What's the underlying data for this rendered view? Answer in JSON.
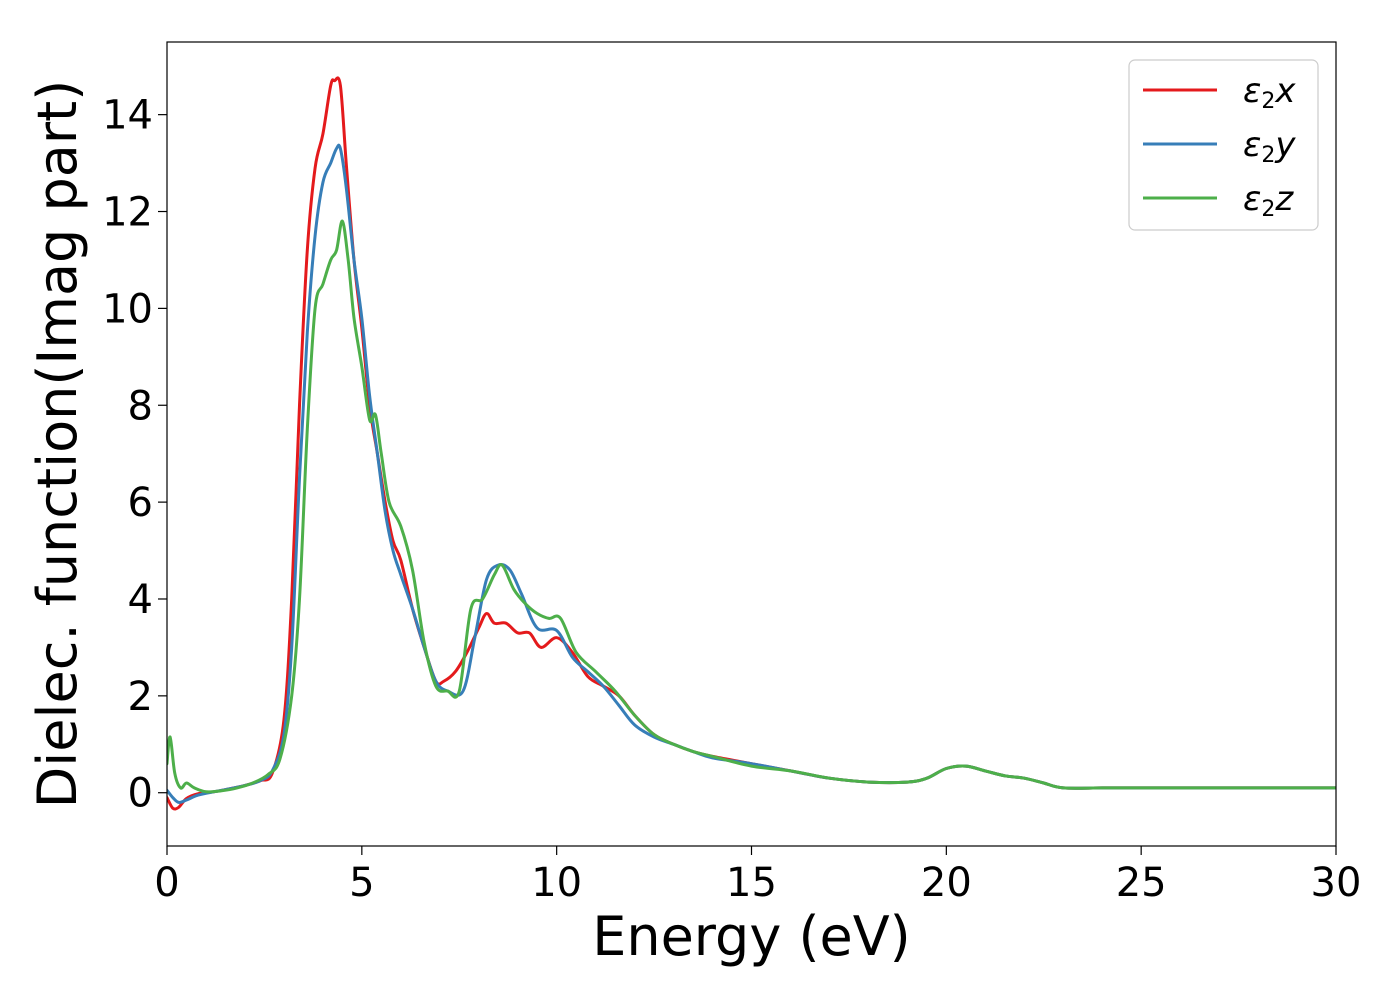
{
  "chart_data": {
    "type": "line",
    "xlabel": "Energy (eV)",
    "ylabel": "Dielec. function(Imag part)",
    "xlim": [
      0,
      30
    ],
    "ylim": [
      -1.1,
      15.5
    ],
    "xticks": [
      0,
      5,
      10,
      15,
      20,
      25,
      30
    ],
    "yticks": [
      0,
      2,
      4,
      6,
      8,
      10,
      12,
      14
    ],
    "grid": false,
    "legend_position": "top-right",
    "series": [
      {
        "name": "ε2x",
        "legend": {
          "base": "ε",
          "sub": "2",
          "suffix": "x"
        },
        "color": "#e41a1c",
        "x": [
          0,
          0.15,
          0.3,
          0.5,
          0.8,
          1.2,
          1.6,
          2.0,
          2.4,
          2.7,
          3.0,
          3.2,
          3.4,
          3.6,
          3.8,
          4.0,
          4.2,
          4.3,
          4.45,
          4.6,
          4.8,
          5.0,
          5.2,
          5.4,
          5.6,
          5.8,
          6.0,
          6.3,
          6.6,
          6.9,
          7.1,
          7.4,
          7.7,
          8.0,
          8.2,
          8.4,
          8.7,
          9.0,
          9.3,
          9.6,
          10.0,
          10.4,
          10.8,
          11.2,
          11.6,
          12.0,
          12.5,
          13.0,
          13.5,
          14.0,
          15.0,
          16.0,
          17.0,
          18.0,
          19.0,
          19.5,
          20.0,
          20.5,
          21.0,
          21.5,
          22.0,
          22.5,
          23.0,
          24.0,
          25.0,
          26.0,
          27.0,
          28.0,
          29.0,
          30.0
        ],
        "values": [
          -0.1,
          -0.32,
          -0.3,
          -0.12,
          -0.02,
          0.02,
          0.08,
          0.15,
          0.25,
          0.4,
          1.5,
          4.0,
          8.0,
          11.2,
          12.9,
          13.6,
          14.6,
          14.7,
          14.6,
          13.0,
          11.0,
          9.6,
          8.0,
          7.0,
          6.0,
          5.2,
          4.8,
          3.8,
          3.0,
          2.3,
          2.3,
          2.5,
          2.9,
          3.4,
          3.7,
          3.5,
          3.5,
          3.3,
          3.3,
          3.0,
          3.2,
          2.9,
          2.4,
          2.2,
          2.0,
          1.6,
          1.2,
          1.0,
          0.85,
          0.75,
          0.6,
          0.45,
          0.3,
          0.22,
          0.22,
          0.3,
          0.5,
          0.55,
          0.45,
          0.35,
          0.3,
          0.2,
          0.1,
          0.1,
          0.1,
          0.1,
          0.1,
          0.1,
          0.1,
          0.1
        ]
      },
      {
        "name": "ε2y",
        "legend": {
          "base": "ε",
          "sub": "2",
          "suffix": "y"
        },
        "color": "#377eb8",
        "x": [
          0,
          0.15,
          0.3,
          0.5,
          0.8,
          1.2,
          1.6,
          2.0,
          2.4,
          2.7,
          3.0,
          3.2,
          3.4,
          3.6,
          3.8,
          4.0,
          4.2,
          4.35,
          4.45,
          4.6,
          4.8,
          5.0,
          5.2,
          5.4,
          5.6,
          5.8,
          6.0,
          6.3,
          6.6,
          6.9,
          7.2,
          7.6,
          7.9,
          8.2,
          8.5,
          8.8,
          9.1,
          9.5,
          10.0,
          10.4,
          10.8,
          11.2,
          11.6,
          12.0,
          12.5,
          13.0,
          13.5,
          14.0,
          15.0,
          16.0,
          17.0,
          18.0,
          19.0,
          19.5,
          20.0,
          20.5,
          21.0,
          21.5,
          22.0,
          22.5,
          23.0,
          24.0,
          25.0,
          26.0,
          27.0,
          28.0,
          29.0,
          30.0
        ],
        "values": [
          0.05,
          -0.1,
          -0.2,
          -0.15,
          -0.05,
          0.02,
          0.08,
          0.15,
          0.25,
          0.45,
          1.2,
          3.0,
          6.5,
          9.5,
          11.5,
          12.6,
          13.0,
          13.3,
          13.3,
          12.5,
          11.0,
          9.8,
          8.2,
          7.0,
          5.8,
          5.0,
          4.5,
          3.8,
          3.0,
          2.3,
          2.1,
          2.1,
          3.2,
          4.4,
          4.7,
          4.6,
          4.1,
          3.4,
          3.35,
          2.8,
          2.5,
          2.2,
          1.8,
          1.4,
          1.15,
          1.0,
          0.85,
          0.72,
          0.6,
          0.45,
          0.3,
          0.22,
          0.22,
          0.3,
          0.5,
          0.55,
          0.45,
          0.35,
          0.3,
          0.2,
          0.1,
          0.1,
          0.1,
          0.1,
          0.1,
          0.1,
          0.1,
          0.1
        ]
      },
      {
        "name": "ε2z",
        "legend": {
          "base": "ε",
          "sub": "2",
          "suffix": "z"
        },
        "color": "#4daf4a",
        "x": [
          0,
          0.08,
          0.2,
          0.35,
          0.5,
          0.7,
          1.0,
          1.4,
          1.8,
          2.2,
          2.6,
          2.9,
          3.2,
          3.4,
          3.6,
          3.8,
          4.0,
          4.2,
          4.35,
          4.5,
          4.65,
          4.8,
          5.0,
          5.2,
          5.35,
          5.5,
          5.7,
          6.0,
          6.3,
          6.6,
          6.9,
          7.2,
          7.5,
          7.8,
          8.1,
          8.4,
          8.6,
          8.9,
          9.2,
          9.5,
          9.8,
          10.1,
          10.5,
          11.0,
          11.5,
          12.0,
          12.5,
          13.0,
          13.5,
          14.0,
          15.0,
          16.0,
          17.0,
          18.0,
          19.0,
          19.5,
          20.0,
          20.5,
          21.0,
          21.5,
          22.0,
          22.5,
          23.0,
          24.0,
          25.0,
          26.0,
          27.0,
          28.0,
          29.0,
          30.0
        ],
        "values": [
          0.6,
          1.15,
          0.4,
          0.1,
          0.2,
          0.1,
          0.02,
          0.04,
          0.1,
          0.2,
          0.38,
          0.7,
          2.0,
          4.0,
          7.5,
          10.0,
          10.5,
          11.0,
          11.2,
          11.8,
          11.0,
          9.8,
          8.8,
          7.7,
          7.8,
          7.0,
          6.0,
          5.5,
          4.6,
          3.1,
          2.2,
          2.1,
          2.1,
          3.8,
          4.0,
          4.5,
          4.7,
          4.2,
          3.9,
          3.7,
          3.6,
          3.6,
          2.9,
          2.5,
          2.1,
          1.6,
          1.2,
          1.0,
          0.85,
          0.75,
          0.55,
          0.45,
          0.3,
          0.22,
          0.22,
          0.3,
          0.5,
          0.55,
          0.45,
          0.35,
          0.3,
          0.2,
          0.1,
          0.1,
          0.1,
          0.1,
          0.1,
          0.1,
          0.1,
          0.1
        ]
      }
    ]
  }
}
